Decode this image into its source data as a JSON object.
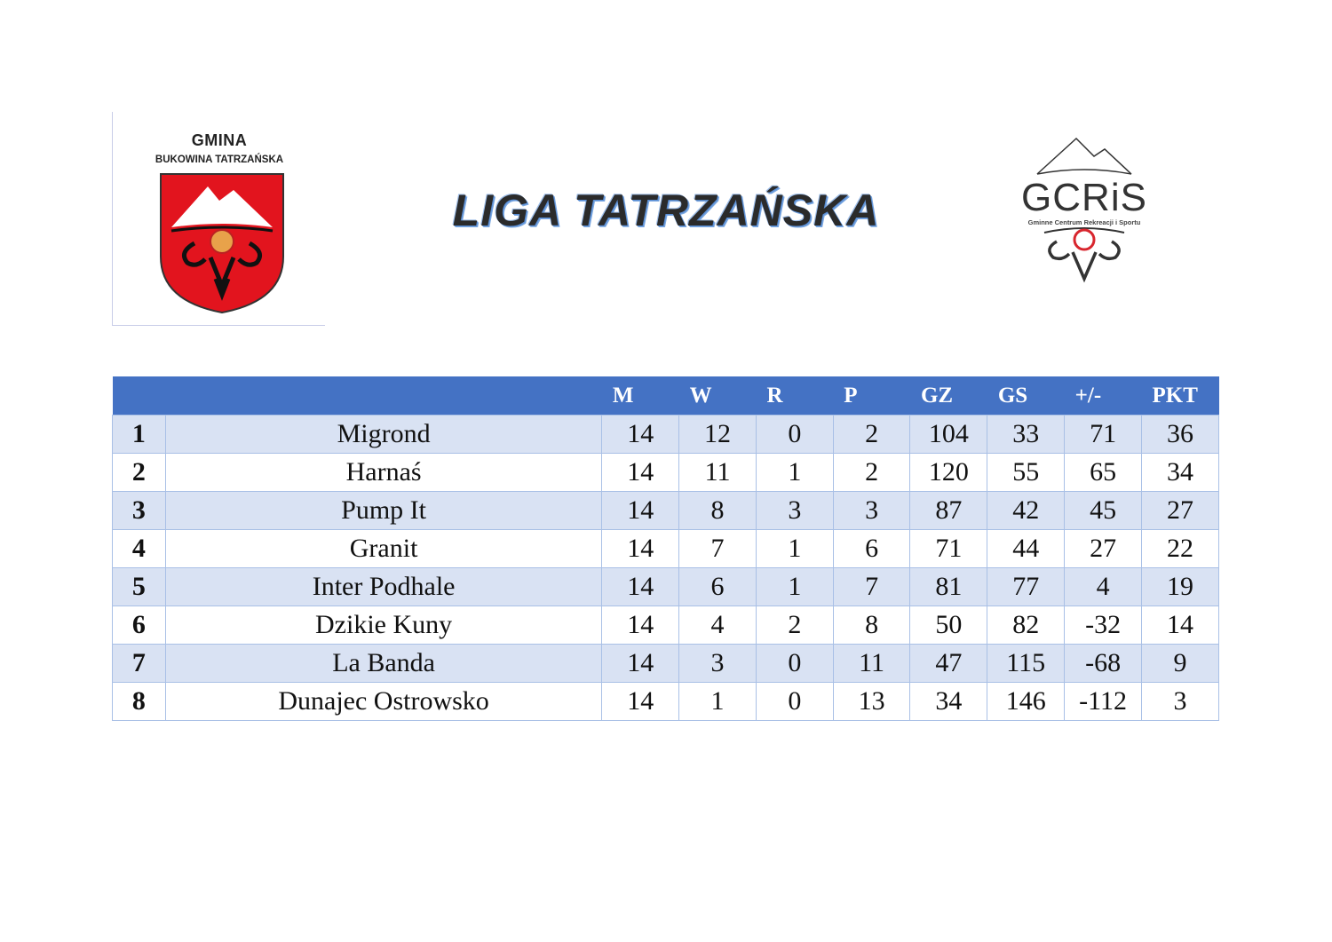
{
  "logos": {
    "left": {
      "line1": "GMINA",
      "line2": "BUKOWINA TATRZAŃSKA"
    },
    "right": {
      "name": "GCRiS",
      "subtitle": "Gminne Centrum Rekreacji i Sportu"
    }
  },
  "title": "LIGA TATRZAŃSKA",
  "colors": {
    "header": "#4472c4",
    "band": "#d9e2f3",
    "shield": "#e2141e"
  },
  "table": {
    "headers": [
      "",
      "",
      "M",
      "W",
      "R",
      "P",
      "GZ",
      "GS",
      "+/-",
      "PKT"
    ],
    "rows": [
      [
        "1",
        "Migrond",
        "14",
        "12",
        "0",
        "2",
        "104",
        "33",
        "71",
        "36"
      ],
      [
        "2",
        "Harnaś",
        "14",
        "11",
        "1",
        "2",
        "120",
        "55",
        "65",
        "34"
      ],
      [
        "3",
        "Pump It",
        "14",
        "8",
        "3",
        "3",
        "87",
        "42",
        "45",
        "27"
      ],
      [
        "4",
        "Granit",
        "14",
        "7",
        "1",
        "6",
        "71",
        "44",
        "27",
        "22"
      ],
      [
        "5",
        "Inter Podhale",
        "14",
        "6",
        "1",
        "7",
        "81",
        "77",
        "4",
        "19"
      ],
      [
        "6",
        "Dzikie Kuny",
        "14",
        "4",
        "2",
        "8",
        "50",
        "82",
        "-32",
        "14"
      ],
      [
        "7",
        "La Banda",
        "14",
        "3",
        "0",
        "11",
        "47",
        "115",
        "-68",
        "9"
      ],
      [
        "8",
        "Dunajec Ostrowsko",
        "14",
        "1",
        "0",
        "13",
        "34",
        "146",
        "-112",
        "3"
      ]
    ]
  }
}
